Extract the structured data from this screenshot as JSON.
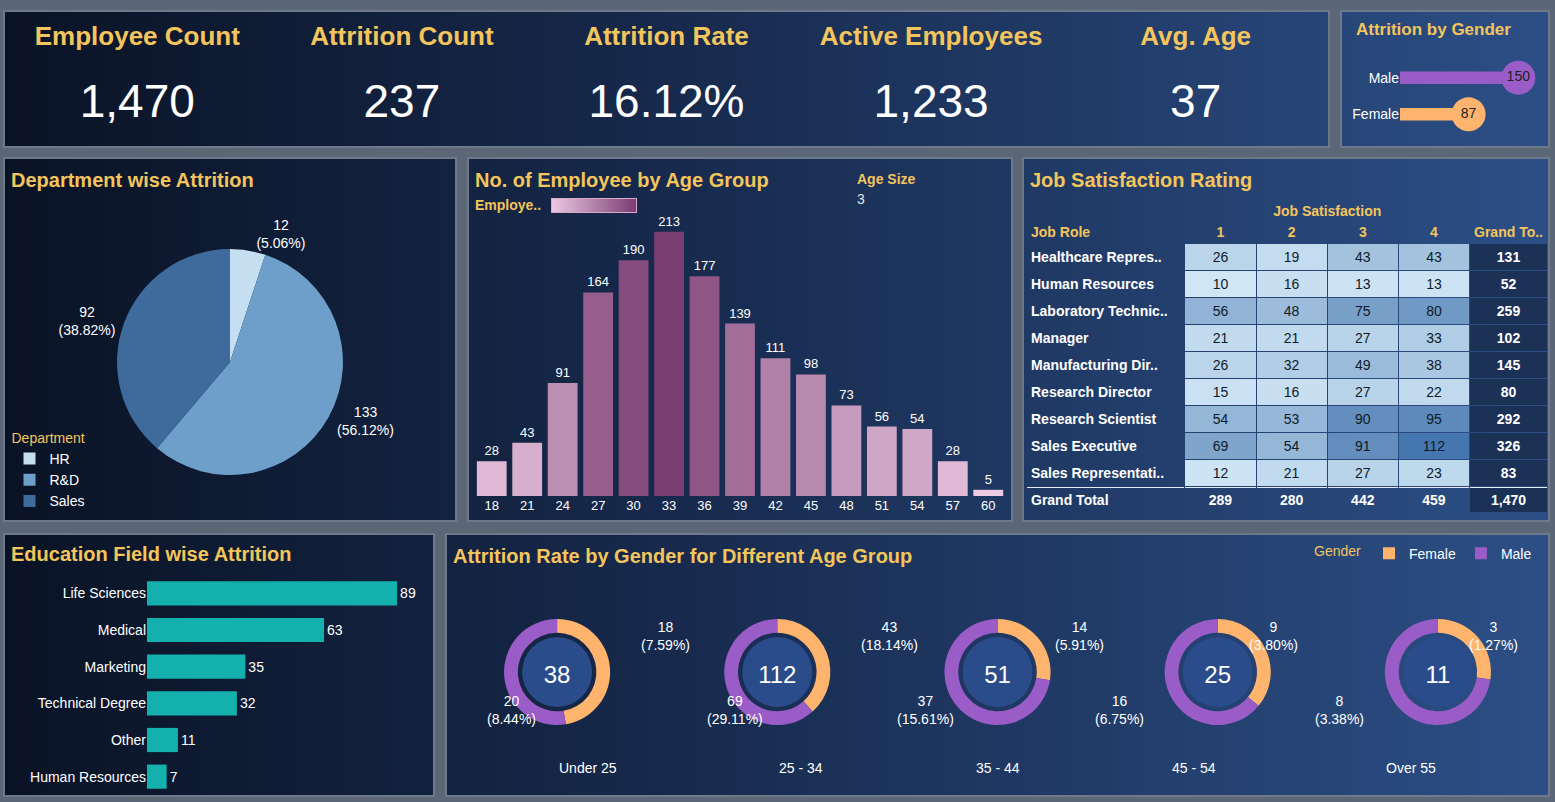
{
  "kpis": [
    {
      "label": "Employee Count",
      "value": 1470,
      "value_label": "1,470"
    },
    {
      "label": "Attrition Count",
      "value": 237
    },
    {
      "label": "Attrition Rate",
      "value": 16.12,
      "value_label": "16.12%"
    },
    {
      "label": "Active Employees",
      "value": 1233,
      "value_label": "1,233"
    },
    {
      "label": "Avg. Age",
      "value": 37
    }
  ],
  "chart_data": [
    {
      "type": "bar",
      "title": "Attrition by Gender",
      "orientation": "horizontal",
      "categories": [
        "Male",
        "Female"
      ],
      "values": [
        150,
        87
      ],
      "colors": [
        "#9a5cc6",
        "#ffb46e"
      ],
      "xlim": [
        0,
        175
      ],
      "data_labels": true,
      "tick_labels": "y"
    },
    {
      "type": "pie",
      "title": "Department wise Attrition",
      "categories": [
        "HR",
        "R&D",
        "Sales"
      ],
      "values": [
        12,
        133,
        92
      ],
      "value_labels": [
        "12\n(5.06%)",
        "133\n(56.12%)",
        "92\n(38.82%)"
      ],
      "colors": [
        "#c5dff0",
        "#6e9fca",
        "#3e6a9c"
      ],
      "legend": "bottom left",
      "legend_title": "Department"
    },
    {
      "type": "bar",
      "title": "No. of Employee by Age Group",
      "categories": [
        "18",
        "21",
        "24",
        "27",
        "30",
        "33",
        "36",
        "39",
        "42",
        "45",
        "48",
        "51",
        "54",
        "57",
        "60"
      ],
      "values": [
        28,
        43,
        91,
        164,
        190,
        213,
        177,
        139,
        111,
        98,
        73,
        56,
        54,
        28,
        5
      ],
      "ylim": [
        0,
        220
      ],
      "data_labels": true,
      "tick_labels": "x",
      "color_label": "Employe..",
      "color_range": [
        5,
        213
      ],
      "bin_size_label": "Age Size",
      "bin_size": 3
    },
    {
      "type": "heatmap",
      "title": "Job Satisfaction Rating",
      "column_group": "Job Satisfaction",
      "row_header": "Job Role",
      "columns": [
        "1",
        "2",
        "3",
        "4"
      ],
      "total_label": "Grand To..",
      "rows": [
        {
          "label": "Healthcare Repres..",
          "values": [
            26,
            19,
            43,
            43
          ],
          "total": 131
        },
        {
          "label": "Human Resources",
          "values": [
            10,
            16,
            13,
            13
          ],
          "total": 52
        },
        {
          "label": "Laboratory Technic..",
          "values": [
            56,
            48,
            75,
            80
          ],
          "total": 259
        },
        {
          "label": "Manager",
          "values": [
            21,
            21,
            27,
            33
          ],
          "total": 102
        },
        {
          "label": "Manufacturing Dir..",
          "values": [
            26,
            32,
            49,
            38
          ],
          "total": 145
        },
        {
          "label": "Research Director",
          "values": [
            15,
            16,
            27,
            22
          ],
          "total": 80
        },
        {
          "label": "Research Scientist",
          "values": [
            54,
            53,
            90,
            95
          ],
          "total": 292
        },
        {
          "label": "Sales Executive",
          "values": [
            69,
            54,
            91,
            112
          ],
          "total": 326
        },
        {
          "label": "Sales Representati..",
          "values": [
            12,
            21,
            27,
            23
          ],
          "total": 83
        }
      ],
      "column_totals_label": "Grand Total",
      "column_totals": [
        289,
        280,
        442,
        459
      ],
      "grand_total": 1470,
      "grand_total_label": "1,470",
      "color_range": [
        10,
        112
      ]
    },
    {
      "type": "bar",
      "title": "Education Field wise Attrition",
      "orientation": "horizontal",
      "categories": [
        "Life Sciences",
        "Medical",
        "Marketing",
        "Technical Degree",
        "Other",
        "Human Resources"
      ],
      "values": [
        89,
        63,
        35,
        32,
        11,
        7
      ],
      "color": "#13b0ad",
      "xlim": [
        0,
        100
      ],
      "data_labels": true,
      "tick_labels": "y"
    },
    {
      "type": "donut",
      "title": "Attrition Rate by Gender for Different Age Group",
      "legend": "top right",
      "legend_title": "Gender",
      "categories": [
        "Under 25",
        "25 - 34",
        "35 - 44",
        "45 - 54",
        "Over 55"
      ],
      "totals": [
        38,
        112,
        51,
        25,
        11
      ],
      "series": [
        {
          "name": "Female",
          "color": "#ffb46e",
          "values": [
            18,
            43,
            14,
            9,
            3
          ],
          "value_labels": [
            "18\n(7.59%)",
            "43\n(18.14%)",
            "14\n(5.91%)",
            "9\n(3.80%)",
            "3\n(1.27%)"
          ]
        },
        {
          "name": "Male",
          "color": "#9a5cc6",
          "values": [
            20,
            69,
            37,
            16,
            8
          ],
          "value_labels": [
            "20\n(8.44%)",
            "69\n(29.11%)",
            "37\n(15.61%)",
            "16\n(6.75%)",
            "8\n(3.38%)"
          ]
        }
      ]
    }
  ]
}
